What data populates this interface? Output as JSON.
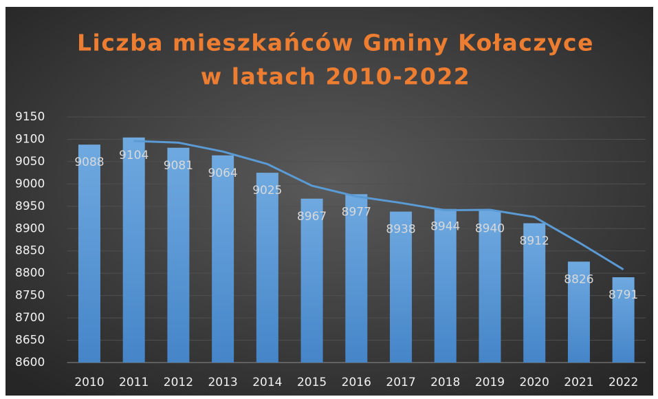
{
  "chart_data": {
    "type": "bar",
    "title": [
      "Liczba mieszkańców Gminy Kołaczyce",
      "w latach 2010-2022"
    ],
    "categories": [
      "2010",
      "2011",
      "2012",
      "2013",
      "2014",
      "2015",
      "2016",
      "2017",
      "2018",
      "2019",
      "2020",
      "2021",
      "2022"
    ],
    "values": [
      9088,
      9104,
      9081,
      9064,
      9025,
      8967,
      8977,
      8938,
      8944,
      8940,
      8912,
      8826,
      8791
    ],
    "color": "#5b9bd5",
    "trend": {
      "color": "#5b9bd5",
      "values": [
        null,
        9096,
        9092.5,
        9072.5,
        9044.5,
        8996,
        8972,
        8957.5,
        8941,
        8942,
        8926,
        8869,
        8808.5
      ]
    },
    "ylim": [
      8600,
      9150
    ],
    "yticks": [
      8600,
      8650,
      8700,
      8750,
      8800,
      8850,
      8900,
      8950,
      9000,
      9050,
      9100,
      9150
    ],
    "grid": true
  }
}
